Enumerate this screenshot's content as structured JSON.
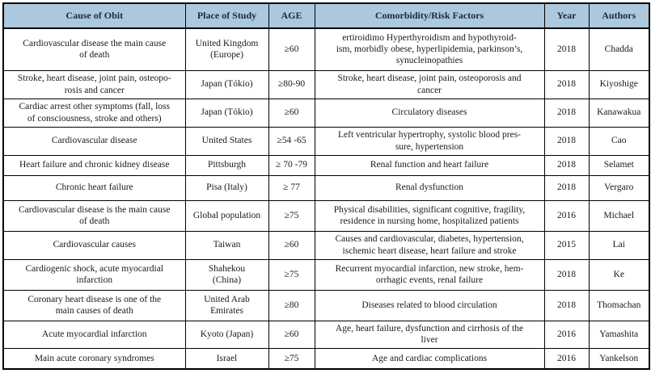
{
  "colors": {
    "header_bg": "#abc8de",
    "header_text": "#1b2a40",
    "body_text": "#1a1a1a",
    "border": "#000000"
  },
  "table": {
    "columns": [
      {
        "key": "cause",
        "label": "Cause of Obit"
      },
      {
        "key": "place",
        "label": "Place of Study"
      },
      {
        "key": "age",
        "label": "AGE"
      },
      {
        "key": "comorbidity",
        "label": "Comorbidity/Risk Factors"
      },
      {
        "key": "year",
        "label": "Year"
      },
      {
        "key": "authors",
        "label": "Authors"
      }
    ],
    "rows": [
      {
        "cause": "Cardiovascular disease the main cause\nof death",
        "place": "United Kingdom\n(Europe)",
        "age": "≥60",
        "comorbidity": "ertiroidimo Hyperthyroidism and hypothyroid-\nism, morbidly obese, hyperlipidemia, parkinson’s,\nsynucleinopathies",
        "year": "2018",
        "authors": "Chadda"
      },
      {
        "cause": "Stroke, heart disease, joint pain, osteopo-\nrosis and cancer",
        "place": "Japan (Tókio)",
        "age": "≥80-90",
        "comorbidity": "Stroke, heart disease, joint pain, osteoporosis and\ncancer",
        "year": "2018",
        "authors": "Kiyoshige"
      },
      {
        "cause": "Cardiac arrest other symptoms (fall, loss\nof consciousness, stroke and others)",
        "place": "Japan (Tókio)",
        "age": "≥60",
        "comorbidity": "Circulatory diseases",
        "year": "2018",
        "authors": "Kanawakua"
      },
      {
        "cause": "Cardiovascular disease",
        "place": "United States",
        "age": "≥54 -65",
        "comorbidity": "Left ventricular hypertrophy, systolic blood pres-\nsure, hypertension",
        "year": "2018",
        "authors": "Cao"
      },
      {
        "cause": "Heart failure and chronic kidney disease",
        "place": "Pittsburgh",
        "age": "≥ 70 -79",
        "comorbidity": "Renal function and heart failure",
        "year": "2018",
        "authors": "Selamet"
      },
      {
        "cause": "Chronic heart failure",
        "place": "Pisa (Italy)",
        "age": "≥ 77",
        "comorbidity": "Renal dysfunction",
        "year": "2018",
        "authors": "Vergaro"
      },
      {
        "cause": "Cardiovascular disease is the main cause\nof death",
        "place": "Global population",
        "age": "≥75",
        "comorbidity": "Physical disabilities, significant cognitive, fragility,\nresidence in nursing home, hospitalized patients",
        "year": "2016",
        "authors": "Michael"
      },
      {
        "cause": "Cardiovascular causes",
        "place": "Taiwan",
        "age": "≥60",
        "comorbidity": "Causes and cardiovascular, diabetes, hypertension,\nischemic heart disease, heart failure and stroke",
        "year": "2015",
        "authors": "Lai"
      },
      {
        "cause": "Cardiogenic shock, acute myocardial\ninfarction",
        "place": "Shahekou\n(China)",
        "age": "≥75",
        "comorbidity": "Recurrent myocardial infarction, new stroke, hem-\norrhagic events, renal failure",
        "year": "2018",
        "authors": "Ke"
      },
      {
        "cause": "Coronary heart disease is one of the\nmain causes of death",
        "place": "United Arab\nEmirates",
        "age": "≥80",
        "comorbidity": "Diseases related to blood circulation",
        "year": "2018",
        "authors": "Thomachan"
      },
      {
        "cause": "Acute myocardial infarction",
        "place": "Kyoto (Japan)",
        "age": "≥60",
        "comorbidity": "Age, heart failure, dysfunction and cirrhosis of the\nliver",
        "year": "2016",
        "authors": "Yamashita"
      },
      {
        "cause": "Main acute coronary syndromes",
        "place": "Israel",
        "age": "≥75",
        "comorbidity": "Age and cardiac complications",
        "year": "2016",
        "authors": "Yankelson"
      }
    ]
  }
}
